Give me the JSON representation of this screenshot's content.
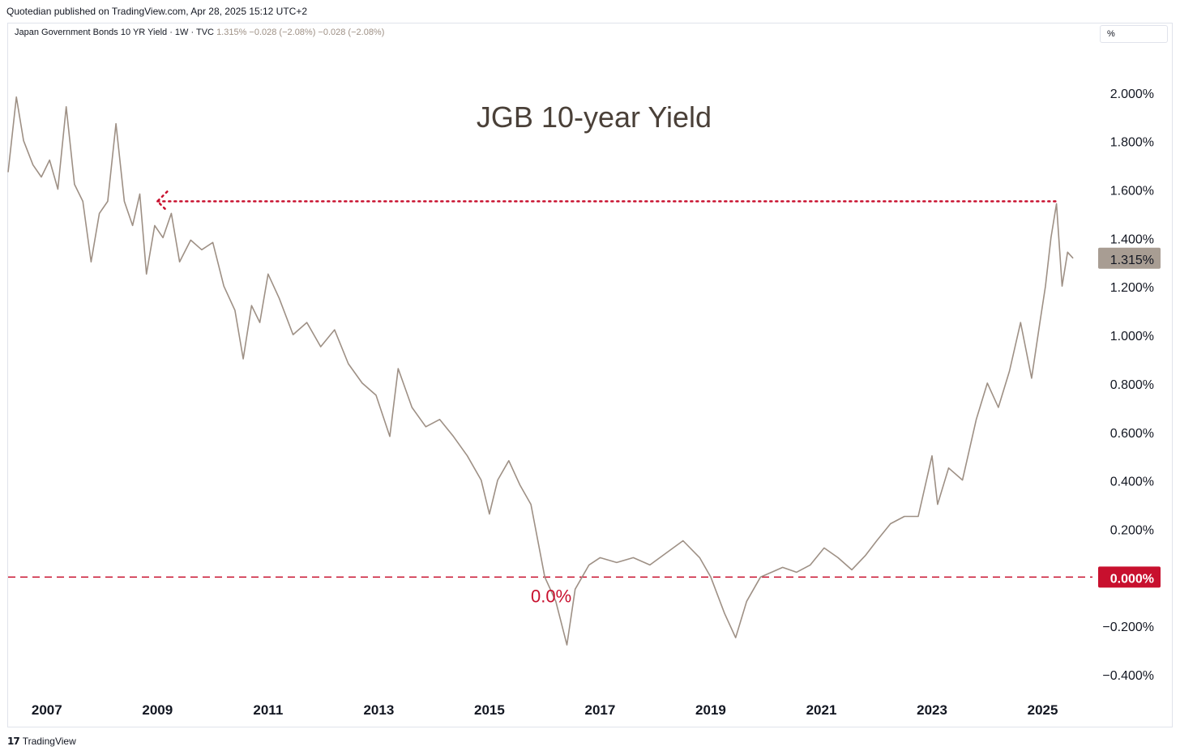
{
  "header": {
    "publisher_line": "Quotedian published on TradingView.com, Apr 28, 2025 15:12 UTC+2"
  },
  "legend": {
    "symbol_line": "Japan Government Bonds 10 YR Yield · 1W · TVC",
    "values_line": "1.315%  −0.028 (−2.08%)  −0.028 (−2.08%)"
  },
  "unit_selector": {
    "label": "%"
  },
  "footer": {
    "brand": "TradingView",
    "logo_glyph": "17"
  },
  "colors": {
    "price_line": "#9e9085",
    "reference": "#c8102e",
    "badge_price": "#a89d93",
    "text": "#131722",
    "title": "#4a4038"
  },
  "chart_data": {
    "type": "line",
    "title": "JGB 10-year Yield",
    "x_tick_labels": [
      "2007",
      "2009",
      "2011",
      "2013",
      "2015",
      "2017",
      "2019",
      "2021",
      "2023",
      "2025"
    ],
    "y_tick_labels": [
      "2.000%",
      "1.800%",
      "1.600%",
      "1.400%",
      "1.200%",
      "1.000%",
      "0.800%",
      "0.600%",
      "0.400%",
      "0.200%",
      "0.000%",
      "−0.200%",
      "−0.400%"
    ],
    "y_ticks": [
      2.0,
      1.8,
      1.6,
      1.4,
      1.2,
      1.0,
      0.8,
      0.6,
      0.4,
      0.2,
      0.0,
      -0.2,
      -0.4
    ],
    "xlim": [
      2006.3,
      2025.9
    ],
    "ylim": [
      -0.48,
      2.28
    ],
    "last_price_label": "1.315%",
    "last_price": 1.315,
    "zero_badge_label": "0.000%",
    "annotations": {
      "zero_line": {
        "value": 0.0,
        "text": "0.0%"
      },
      "prior_high_line": {
        "value": 1.55,
        "from_x": 2009.0,
        "to_x": 2025.3
      }
    },
    "series": [
      {
        "x": [
          2006.3,
          2006.45,
          2006.58,
          2006.75,
          2006.9,
          2007.05,
          2007.2,
          2007.35,
          2007.5,
          2007.65,
          2007.8,
          2007.95,
          2008.1,
          2008.25,
          2008.4,
          2008.55,
          2008.68,
          2008.8,
          2008.95,
          2009.1,
          2009.25,
          2009.4,
          2009.6,
          2009.8,
          2010.0,
          2010.2,
          2010.4,
          2010.55,
          2010.7,
          2010.85,
          2011.0,
          2011.2,
          2011.45,
          2011.7,
          2011.95,
          2012.2,
          2012.45,
          2012.7,
          2012.95,
          2013.2,
          2013.35,
          2013.6,
          2013.85,
          2014.1,
          2014.35,
          2014.6,
          2014.85,
          2015.0,
          2015.15,
          2015.35,
          2015.55,
          2015.75,
          2016.0,
          2016.2,
          2016.4,
          2016.55,
          2016.8,
          2017.0,
          2017.3,
          2017.6,
          2017.9,
          2018.2,
          2018.5,
          2018.8,
          2019.0,
          2019.25,
          2019.45,
          2019.65,
          2019.9,
          2020.1,
          2020.3,
          2020.55,
          2020.8,
          2021.05,
          2021.3,
          2021.55,
          2021.8,
          2022.0,
          2022.25,
          2022.5,
          2022.75,
          2023.0,
          2023.1,
          2023.3,
          2023.55,
          2023.8,
          2024.0,
          2024.2,
          2024.4,
          2024.6,
          2024.8,
          2024.95,
          2025.05,
          2025.15,
          2025.25,
          2025.35,
          2025.45,
          2025.55
        ],
        "values": [
          1.67,
          1.98,
          1.8,
          1.7,
          1.65,
          1.72,
          1.6,
          1.94,
          1.62,
          1.55,
          1.3,
          1.5,
          1.55,
          1.87,
          1.55,
          1.45,
          1.58,
          1.25,
          1.45,
          1.4,
          1.5,
          1.3,
          1.39,
          1.35,
          1.38,
          1.2,
          1.1,
          0.9,
          1.12,
          1.05,
          1.25,
          1.15,
          1.0,
          1.05,
          0.95,
          1.02,
          0.88,
          0.8,
          0.75,
          0.58,
          0.86,
          0.7,
          0.62,
          0.65,
          0.58,
          0.5,
          0.4,
          0.26,
          0.4,
          0.48,
          0.38,
          0.3,
          0.0,
          -0.1,
          -0.28,
          -0.05,
          0.05,
          0.08,
          0.06,
          0.08,
          0.05,
          0.1,
          0.15,
          0.08,
          0.0,
          -0.15,
          -0.25,
          -0.1,
          0.0,
          0.02,
          0.04,
          0.02,
          0.05,
          0.12,
          0.08,
          0.03,
          0.09,
          0.15,
          0.22,
          0.25,
          0.25,
          0.5,
          0.3,
          0.45,
          0.4,
          0.65,
          0.8,
          0.7,
          0.85,
          1.05,
          0.82,
          1.05,
          1.2,
          1.4,
          1.54,
          1.2,
          1.34,
          1.315
        ]
      }
    ]
  }
}
